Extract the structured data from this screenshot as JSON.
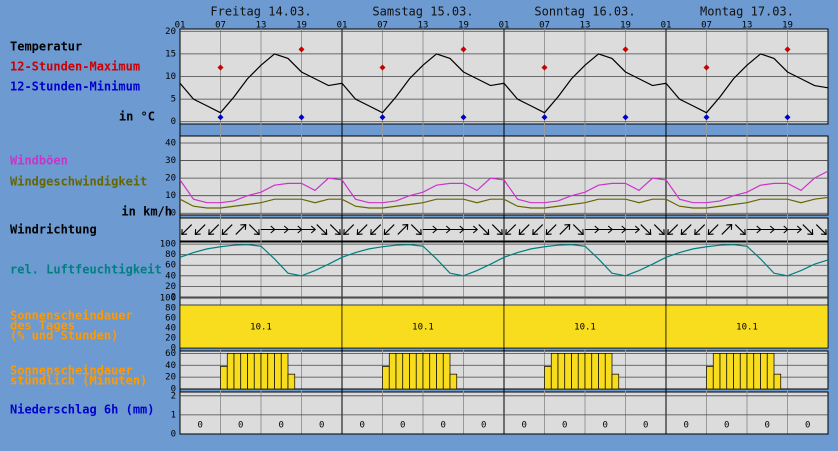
{
  "header": {
    "days": [
      "Freitag 14.03.",
      "Samstag 15.03.",
      "Sonntag 16.03.",
      "Montag 17.03."
    ],
    "xlim": [
      0,
      96
    ],
    "hour_ticks": [
      {
        "value": 0,
        "label": "01"
      },
      {
        "value": 6,
        "label": "07"
      },
      {
        "value": 12,
        "label": "13"
      },
      {
        "value": 18,
        "label": "19"
      },
      {
        "value": 24,
        "label": "01"
      },
      {
        "value": 30,
        "label": "07"
      },
      {
        "value": 36,
        "label": "13"
      },
      {
        "value": 42,
        "label": "19"
      },
      {
        "value": 48,
        "label": "01"
      },
      {
        "value": 54,
        "label": "07"
      },
      {
        "value": 60,
        "label": "13"
      },
      {
        "value": 66,
        "label": "19"
      },
      {
        "value": 72,
        "label": "01"
      },
      {
        "value": 78,
        "label": "07"
      },
      {
        "value": 84,
        "label": "13"
      },
      {
        "value": 90,
        "label": "19"
      }
    ]
  },
  "chart_data": [
    {
      "type": "line",
      "title": "Temperatur",
      "unit": "in °C",
      "ylim": [
        -0.5,
        20.5
      ],
      "yticks": [
        0,
        5,
        10,
        15,
        20
      ],
      "series": [
        {
          "type": "line",
          "color": "#000000",
          "x": [
            0,
            2,
            4,
            6,
            8,
            10,
            12,
            14,
            16,
            18,
            20,
            22,
            24,
            26,
            28,
            30,
            32,
            34,
            36,
            38,
            40,
            42,
            44,
            46,
            48,
            50,
            52,
            54,
            56,
            58,
            60,
            62,
            64,
            66,
            68,
            70,
            72,
            74,
            76,
            78,
            80,
            82,
            84,
            86,
            88,
            90,
            92,
            94,
            96
          ],
          "values": [
            8.5,
            5,
            3.5,
            2,
            5.5,
            9.5,
            12.5,
            15,
            14,
            11,
            9.5,
            8,
            8.5,
            5,
            3.5,
            2,
            5.5,
            9.5,
            12.5,
            15,
            14,
            11,
            9.5,
            8,
            8.5,
            5,
            3.5,
            2,
            5.5,
            9.5,
            12.5,
            15,
            14,
            11,
            9.5,
            8,
            8.5,
            5,
            3.5,
            2,
            5.5,
            9.5,
            12.5,
            15,
            14,
            11,
            9.5,
            8,
            7.5
          ]
        },
        {
          "type": "scatter",
          "name": "12-Stunden-Maximum",
          "color": "#cc0000",
          "x": [
            6,
            18,
            30,
            42,
            54,
            66,
            78,
            90
          ],
          "values": [
            12,
            16,
            12,
            16,
            12,
            16,
            12,
            16
          ]
        },
        {
          "type": "scatter",
          "name": "12-Stunden-Minimum",
          "color": "#0000cc",
          "x": [
            6,
            18,
            30,
            42,
            54,
            66,
            78,
            90
          ],
          "values": [
            1,
            1,
            1,
            1,
            1,
            1,
            1,
            1
          ]
        }
      ]
    },
    {
      "type": "line",
      "unit": "in km/h",
      "ylim": [
        -1,
        44
      ],
      "yticks": [
        0,
        10,
        20,
        30,
        40
      ],
      "x": [
        0,
        2,
        4,
        6,
        8,
        10,
        12,
        14,
        16,
        18,
        20,
        22,
        24,
        26,
        28,
        30,
        32,
        34,
        36,
        38,
        40,
        42,
        44,
        46,
        48,
        50,
        52,
        54,
        56,
        58,
        60,
        62,
        64,
        66,
        68,
        70,
        72,
        74,
        76,
        78,
        80,
        82,
        84,
        86,
        88,
        90,
        92,
        94,
        96
      ],
      "series": [
        {
          "name": "Windböen",
          "color": "#cc33cc",
          "values": [
            19,
            8,
            6,
            6,
            7,
            10,
            12,
            16,
            17,
            17,
            13,
            20,
            19,
            8,
            6,
            6,
            7,
            10,
            12,
            16,
            17,
            17,
            13,
            20,
            19,
            8,
            6,
            6,
            7,
            10,
            12,
            16,
            17,
            17,
            13,
            20,
            19,
            8,
            6,
            6,
            7,
            10,
            12,
            16,
            17,
            17,
            13,
            20,
            24
          ]
        },
        {
          "name": "Windgeschwindigkeit",
          "color": "#666600",
          "values": [
            8,
            4,
            3,
            3,
            4,
            5,
            6,
            8,
            8,
            8,
            6,
            8,
            8,
            4,
            3,
            3,
            4,
            5,
            6,
            8,
            8,
            8,
            6,
            8,
            8,
            4,
            3,
            3,
            4,
            5,
            6,
            8,
            8,
            8,
            6,
            8,
            8,
            4,
            3,
            3,
            4,
            5,
            6,
            8,
            8,
            8,
            6,
            8,
            9
          ]
        }
      ]
    },
    {
      "type": "arrows",
      "title": "Windrichtung",
      "x": [
        1,
        3,
        5,
        7,
        9,
        11,
        13,
        15,
        17,
        19,
        21,
        23,
        25,
        27,
        29,
        31,
        33,
        35,
        37,
        39,
        41,
        43,
        45,
        47,
        49,
        51,
        53,
        55,
        57,
        59,
        61,
        63,
        65,
        67,
        69,
        71,
        73,
        75,
        77,
        79,
        81,
        83,
        85,
        87,
        89,
        91,
        93,
        95
      ],
      "values": [
        45,
        45,
        45,
        45,
        225,
        315,
        270,
        270,
        270,
        270,
        315,
        315,
        45,
        45,
        45,
        45,
        225,
        315,
        270,
        270,
        270,
        270,
        315,
        315,
        45,
        45,
        45,
        45,
        225,
        315,
        270,
        270,
        270,
        270,
        315,
        315,
        45,
        45,
        45,
        45,
        225,
        315,
        270,
        270,
        270,
        270,
        315,
        315
      ]
    },
    {
      "type": "line",
      "ylim": [
        -2,
        104
      ],
      "yticks": [
        0,
        20,
        40,
        60,
        80,
        100
      ],
      "x": [
        0,
        2,
        4,
        6,
        8,
        10,
        12,
        14,
        16,
        18,
        20,
        22,
        24,
        26,
        28,
        30,
        32,
        34,
        36,
        38,
        40,
        42,
        44,
        46,
        48,
        50,
        52,
        54,
        56,
        58,
        60,
        62,
        64,
        66,
        68,
        70,
        72,
        74,
        76,
        78,
        80,
        82,
        84,
        86,
        88,
        90,
        92,
        94,
        96
      ],
      "series": [
        {
          "name": "rel. Luftfeuchtigkeit",
          "color": "#008080",
          "values": [
            75,
            84,
            91,
            95,
            98,
            99,
            96,
            72,
            45,
            40,
            50,
            62,
            75,
            84,
            91,
            95,
            98,
            99,
            96,
            72,
            45,
            40,
            50,
            62,
            75,
            84,
            91,
            95,
            98,
            99,
            96,
            72,
            45,
            40,
            50,
            62,
            75,
            84,
            91,
            95,
            98,
            99,
            96,
            72,
            45,
            40,
            50,
            62,
            70
          ]
        }
      ]
    },
    {
      "type": "histogram",
      "title_lines": [
        "Sonnenscheindauer",
        "des Tages",
        "(% und Stunden)"
      ],
      "title_color": "#ff9900",
      "ylim": [
        0,
        100
      ],
      "yticks": [
        0,
        20,
        40,
        60,
        80,
        100
      ],
      "color": "#f8dc1e",
      "bins": [
        0,
        24,
        48,
        72,
        96
      ],
      "values": [
        86,
        86,
        86,
        86
      ],
      "hours": [
        10.1,
        10.1,
        10.1,
        10.1
      ]
    },
    {
      "type": "histogram",
      "title_lines": [
        "Sonnenscheindauer",
        "stündlich (Minuten)"
      ],
      "title_color": "#ff9900",
      "ylim": [
        0,
        64
      ],
      "yticks": [
        0,
        20,
        40,
        60
      ],
      "color": "#f8dc1e",
      "bins": [
        0,
        1,
        2,
        3,
        4,
        5,
        6,
        7,
        8,
        9,
        10,
        11,
        12,
        13,
        14,
        15,
        16,
        17,
        18,
        19,
        20,
        21,
        22,
        23,
        24,
        25,
        26,
        27,
        28,
        29,
        30,
        31,
        32,
        33,
        34,
        35,
        36,
        37,
        38,
        39,
        40,
        41,
        42,
        43,
        44,
        45,
        46,
        47,
        48,
        49,
        50,
        51,
        52,
        53,
        54,
        55,
        56,
        57,
        58,
        59,
        60,
        61,
        62,
        63,
        64,
        65,
        66,
        67,
        68,
        69,
        70,
        71,
        72,
        73,
        74,
        75,
        76,
        77,
        78,
        79,
        80,
        81,
        82,
        83,
        84,
        85,
        86,
        87,
        88,
        89,
        90,
        91,
        92,
        93,
        94,
        95,
        96
      ],
      "values": [
        0,
        0,
        0,
        0,
        0,
        0,
        38,
        60,
        60,
        60,
        60,
        60,
        60,
        60,
        60,
        60,
        25,
        0,
        0,
        0,
        0,
        0,
        0,
        0,
        0,
        0,
        0,
        0,
        0,
        0,
        38,
        60,
        60,
        60,
        60,
        60,
        60,
        60,
        60,
        60,
        25,
        0,
        0,
        0,
        0,
        0,
        0,
        0,
        0,
        0,
        0,
        0,
        0,
        0,
        38,
        60,
        60,
        60,
        60,
        60,
        60,
        60,
        60,
        60,
        25,
        0,
        0,
        0,
        0,
        0,
        0,
        0,
        0,
        0,
        0,
        0,
        0,
        0,
        38,
        60,
        60,
        60,
        60,
        60,
        60,
        60,
        60,
        60,
        25,
        0,
        0,
        0,
        0,
        0,
        0,
        0
      ]
    },
    {
      "type": "histogram",
      "title_lines": [
        "Niederschlag 6h (mm)"
      ],
      "title_color": "#0000cc",
      "show_values": true,
      "ylim": [
        0,
        2.2
      ],
      "yticks": [
        0,
        1,
        2
      ],
      "color": "#0000cc",
      "bins": [
        0,
        6,
        12,
        18,
        24,
        30,
        36,
        42,
        48,
        54,
        60,
        66,
        72,
        78,
        84,
        90,
        96
      ],
      "values": [
        0,
        0,
        0,
        0,
        0,
        0,
        0,
        0,
        0,
        0,
        0,
        0,
        0,
        0,
        0,
        0
      ]
    }
  ]
}
